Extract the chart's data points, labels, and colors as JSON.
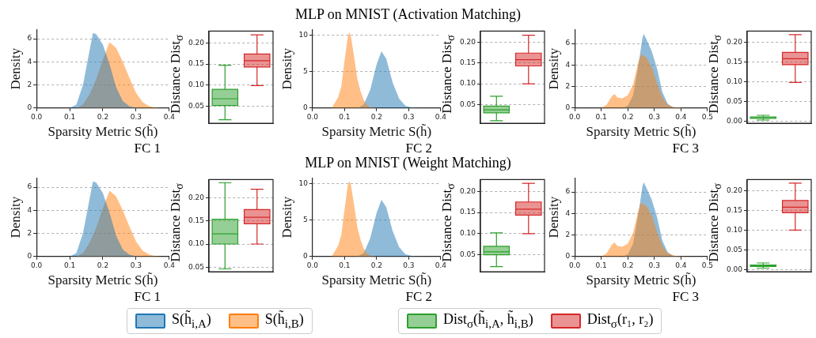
{
  "chart_data": [
    {
      "type": "other",
      "title": "MLP on MNIST (Activation Matching)"
    },
    {
      "type": "area",
      "xlabel": "Sparsity Metric S(h̃)",
      "ylabel": "Density",
      "annotations": [
        "FC 1"
      ],
      "legend": "bottom",
      "grid": "y",
      "xlim": [
        0,
        0.4
      ],
      "xticks": [
        {
          "value": 0,
          "label": "0.0"
        },
        {
          "value": 0.1,
          "label": "0.1"
        },
        {
          "value": 0.2,
          "label": "0.2"
        },
        {
          "value": 0.3,
          "label": "0.3"
        },
        {
          "value": 0.4,
          "label": "0.4"
        }
      ],
      "ylim": [
        0,
        6.8
      ],
      "yticks": [
        0,
        2,
        4,
        6
      ],
      "series": [
        {
          "name": "S(h̃$_{i,A}$)",
          "color": "#1f77b4",
          "x": [
            0.1,
            0.12,
            0.14,
            0.16,
            0.17,
            0.18,
            0.2,
            0.22,
            0.24,
            0.26,
            0.28,
            0.3,
            0.32
          ],
          "values": [
            0,
            0.3,
            2,
            5,
            6.5,
            6.4,
            5.5,
            3.8,
            1.8,
            0.6,
            0.15,
            0.02,
            0
          ]
        },
        {
          "name": "S(h̃$_{i,B}$)",
          "color": "#ff7f0e",
          "x": [
            0.12,
            0.14,
            0.16,
            0.18,
            0.2,
            0.22,
            0.24,
            0.26,
            0.28,
            0.3,
            0.32,
            0.34,
            0.36,
            0.38
          ],
          "values": [
            0,
            0.3,
            1.2,
            2.5,
            4.2,
            5.7,
            5.2,
            4,
            2.6,
            1.3,
            0.5,
            0.15,
            0.03,
            0
          ]
        }
      ]
    },
    {
      "type": "box",
      "ylabel": "Distance Dist$_{σ}$",
      "legend": "bottom",
      "grid": "y",
      "categories": [
        null,
        null
      ],
      "ylim": [
        0.01,
        0.228
      ],
      "yticks": [
        {
          "value": 0.05,
          "label": "0.05"
        },
        {
          "value": 0.1,
          "label": "0.10"
        },
        {
          "value": 0.15,
          "label": "0.15"
        },
        {
          "value": 0.2,
          "label": "0.20"
        }
      ],
      "series": [
        {
          "name": "Dist$_{σ}$(h̃$_{i,A}$, h̃$_{i,B}$)",
          "color": "#2ca02c",
          "boxes": [
            {
              "low": 0.018,
              "q1": 0.052,
              "median": 0.068,
              "q3": 0.09,
              "high": 0.147
            },
            null
          ]
        },
        {
          "name": "Dist$_{σ}$(r₁, r₂)",
          "color": "#d62728",
          "boxes": [
            null,
            {
              "low": 0.099,
              "q1": 0.143,
              "median": 0.158,
              "q3": 0.174,
              "high": 0.219
            }
          ]
        }
      ]
    },
    {
      "type": "area",
      "xlabel": "Sparsity Metric S(h̃)",
      "ylabel": "Density",
      "annotations": [
        "FC 2"
      ],
      "grid": "y",
      "xlim": [
        0,
        0.4
      ],
      "xticks": [
        {
          "value": 0,
          "label": "0.0"
        },
        {
          "value": 0.1,
          "label": "0.1"
        },
        {
          "value": 0.2,
          "label": "0.2"
        },
        {
          "value": 0.3,
          "label": "0.3"
        },
        {
          "value": 0.4,
          "label": "0.4"
        }
      ],
      "ylim": [
        0,
        10.8
      ],
      "yticks": [
        0,
        5,
        10
      ],
      "series": [
        {
          "color": "#ff7f0e",
          "x": [
            0.06,
            0.08,
            0.09,
            0.1,
            0.11,
            0.115,
            0.12,
            0.13,
            0.14,
            0.15,
            0.16,
            0.17,
            0.18,
            0.2
          ],
          "values": [
            0,
            1.5,
            3,
            6.5,
            9.8,
            10.4,
            9.8,
            7,
            4,
            2.3,
            1.1,
            0.4,
            0.1,
            0
          ]
        },
        {
          "color": "#1f77b4",
          "x": [
            0.14,
            0.16,
            0.18,
            0.2,
            0.215,
            0.23,
            0.25,
            0.27,
            0.29,
            0.31,
            0.33
          ],
          "values": [
            0,
            0.5,
            2.5,
            6,
            7.8,
            6.8,
            3.5,
            1.3,
            0.3,
            0.1,
            0
          ]
        }
      ]
    },
    {
      "type": "box",
      "ylabel": "Distance Dist$_{σ}$",
      "grid": "y",
      "categories": [
        null,
        null
      ],
      "ylim": [
        0.005,
        0.227
      ],
      "yticks": [
        {
          "value": 0.05,
          "label": "0.05"
        },
        {
          "value": 0.1,
          "label": "0.10"
        },
        {
          "value": 0.15,
          "label": "0.15"
        },
        {
          "value": 0.2,
          "label": "0.20"
        }
      ],
      "series": [
        {
          "color": "#2ca02c",
          "boxes": [
            {
              "low": 0.011,
              "q1": 0.03,
              "median": 0.037,
              "q3": 0.046,
              "high": 0.07
            },
            null
          ]
        },
        {
          "color": "#d62728",
          "boxes": [
            null,
            {
              "low": 0.1,
              "q1": 0.143,
              "median": 0.158,
              "q3": 0.174,
              "high": 0.217
            }
          ]
        }
      ]
    },
    {
      "type": "area",
      "xlabel": "Sparsity Metric S(h̃)",
      "ylabel": "Density",
      "annotations": [
        "FC 3"
      ],
      "grid": "y",
      "xlim": [
        0,
        0.5
      ],
      "xticks": [
        {
          "value": 0,
          "label": "0.0"
        },
        {
          "value": 0.1,
          "label": "0.1"
        },
        {
          "value": 0.2,
          "label": "0.2"
        },
        {
          "value": 0.3,
          "label": "0.3"
        },
        {
          "value": 0.4,
          "label": "0.4"
        },
        {
          "value": 0.5,
          "label": "0.5"
        }
      ],
      "ylim": [
        0,
        7.3
      ],
      "yticks": [
        0,
        2,
        4,
        6
      ],
      "series": [
        {
          "color": "#ff7f0e",
          "x": [
            0.1,
            0.12,
            0.14,
            0.15,
            0.16,
            0.18,
            0.2,
            0.22,
            0.24,
            0.25,
            0.27,
            0.29,
            0.31,
            0.33,
            0.35,
            0.38,
            0.42
          ],
          "values": [
            0,
            0.3,
            1.1,
            1.3,
            1,
            0.9,
            1.2,
            2.2,
            4.3,
            5,
            4.7,
            3.8,
            2.3,
            1,
            0.3,
            0.05,
            0
          ]
        },
        {
          "color": "#1f77b4",
          "x": [
            0.18,
            0.2,
            0.22,
            0.24,
            0.255,
            0.26,
            0.27,
            0.29,
            0.31,
            0.33,
            0.35,
            0.37,
            0.4
          ],
          "values": [
            0,
            0.2,
            1.2,
            4,
            6.5,
            6.9,
            6.4,
            5.3,
            3.7,
            1.5,
            0.4,
            0.05,
            0
          ]
        }
      ]
    },
    {
      "type": "box",
      "ylabel": "Distance Dist$_{σ}$",
      "grid": "y",
      "categories": [
        null,
        null
      ],
      "ylim": [
        -0.005,
        0.228
      ],
      "yticks": [
        {
          "value": 0,
          "label": "0.00"
        },
        {
          "value": 0.05,
          "label": "0.05"
        },
        {
          "value": 0.1,
          "label": "0.10"
        },
        {
          "value": 0.15,
          "label": "0.15"
        },
        {
          "value": 0.2,
          "label": "0.20"
        }
      ],
      "series": [
        {
          "color": "#2ca02c",
          "boxes": [
            {
              "low": 0.003,
              "q1": 0.007,
              "median": 0.009,
              "q3": 0.011,
              "high": 0.015
            },
            null
          ]
        },
        {
          "color": "#d62728",
          "boxes": [
            null,
            {
              "low": 0.098,
              "q1": 0.143,
              "median": 0.158,
              "q3": 0.174,
              "high": 0.219
            }
          ]
        }
      ]
    },
    {
      "type": "other",
      "title": "MLP on MNIST (Weight Matching)"
    },
    {
      "type": "area",
      "xlabel": "Sparsity Metric S(h̃)",
      "ylabel": "Density",
      "annotations": [
        "FC 1"
      ],
      "grid": "y",
      "xlim": [
        0,
        0.4
      ],
      "xticks": [
        {
          "value": 0,
          "label": "0.0"
        },
        {
          "value": 0.1,
          "label": "0.1"
        },
        {
          "value": 0.2,
          "label": "0.2"
        },
        {
          "value": 0.3,
          "label": "0.3"
        },
        {
          "value": 0.4,
          "label": "0.4"
        }
      ],
      "ylim": [
        0,
        6.8
      ],
      "yticks": [
        0,
        2,
        4,
        6
      ],
      "series": [
        {
          "color": "#1f77b4",
          "x": [
            0.1,
            0.12,
            0.14,
            0.16,
            0.17,
            0.18,
            0.2,
            0.22,
            0.24,
            0.26,
            0.28,
            0.3,
            0.32
          ],
          "values": [
            0,
            0.3,
            2,
            5,
            6.5,
            6.4,
            5.5,
            3.8,
            1.8,
            0.6,
            0.15,
            0.02,
            0
          ]
        },
        {
          "color": "#ff7f0e",
          "x": [
            0.12,
            0.14,
            0.16,
            0.18,
            0.2,
            0.22,
            0.24,
            0.26,
            0.28,
            0.3,
            0.32,
            0.34,
            0.36,
            0.38
          ],
          "values": [
            0,
            0.3,
            1.2,
            2.5,
            4.2,
            5.7,
            5.2,
            4,
            2.6,
            1.3,
            0.5,
            0.15,
            0.03,
            0
          ]
        }
      ]
    },
    {
      "type": "box",
      "ylabel": "Distance Dist$_{σ}$",
      "grid": "y",
      "categories": [
        null,
        null
      ],
      "ylim": [
        0.04,
        0.24
      ],
      "yticks": [
        {
          "value": 0.05,
          "label": "0.05"
        },
        {
          "value": 0.1,
          "label": "0.10"
        },
        {
          "value": 0.15,
          "label": "0.15"
        },
        {
          "value": 0.2,
          "label": "0.20"
        }
      ],
      "series": [
        {
          "color": "#2ca02c",
          "boxes": [
            {
              "low": 0.046,
              "q1": 0.1,
              "median": 0.122,
              "q3": 0.154,
              "high": 0.233
            },
            null
          ]
        },
        {
          "color": "#d62728",
          "boxes": [
            null,
            {
              "low": 0.1,
              "q1": 0.144,
              "median": 0.158,
              "q3": 0.175,
              "high": 0.219
            }
          ]
        }
      ]
    },
    {
      "type": "area",
      "xlabel": "Sparsity Metric S(h̃)",
      "ylabel": "Density",
      "annotations": [
        "FC 2"
      ],
      "grid": "y",
      "xlim": [
        0,
        0.4
      ],
      "xticks": [
        {
          "value": 0,
          "label": "0.0"
        },
        {
          "value": 0.1,
          "label": "0.1"
        },
        {
          "value": 0.2,
          "label": "0.2"
        },
        {
          "value": 0.3,
          "label": "0.3"
        },
        {
          "value": 0.4,
          "label": "0.4"
        }
      ],
      "ylim": [
        0,
        10.8
      ],
      "yticks": [
        0,
        5,
        10
      ],
      "series": [
        {
          "color": "#ff7f0e",
          "x": [
            0.06,
            0.08,
            0.09,
            0.1,
            0.11,
            0.115,
            0.12,
            0.13,
            0.14,
            0.15,
            0.16,
            0.17,
            0.18,
            0.2
          ],
          "values": [
            0,
            1.5,
            3,
            6.5,
            9.8,
            10.4,
            9.8,
            7,
            4,
            2.3,
            1.1,
            0.4,
            0.1,
            0
          ]
        },
        {
          "color": "#1f77b4",
          "x": [
            0.14,
            0.16,
            0.18,
            0.2,
            0.215,
            0.23,
            0.25,
            0.27,
            0.29,
            0.31,
            0.33
          ],
          "values": [
            0,
            0.5,
            2.5,
            6,
            7.8,
            6.8,
            3.5,
            1.3,
            0.3,
            0.1,
            0
          ]
        }
      ]
    },
    {
      "type": "box",
      "ylabel": "Distance Dist$_{σ}$",
      "grid": "y",
      "categories": [
        null,
        null
      ],
      "ylim": [
        0.01,
        0.228
      ],
      "yticks": [
        {
          "value": 0.05,
          "label": "0.05"
        },
        {
          "value": 0.1,
          "label": "0.10"
        },
        {
          "value": 0.15,
          "label": "0.15"
        },
        {
          "value": 0.2,
          "label": "0.20"
        }
      ],
      "series": [
        {
          "color": "#2ca02c",
          "boxes": [
            {
              "low": 0.022,
              "q1": 0.05,
              "median": 0.057,
              "q3": 0.07,
              "high": 0.102
            },
            null
          ]
        },
        {
          "color": "#d62728",
          "boxes": [
            null,
            {
              "low": 0.1,
              "q1": 0.144,
              "median": 0.158,
              "q3": 0.175,
              "high": 0.219
            }
          ]
        }
      ]
    },
    {
      "type": "area",
      "xlabel": "Sparsity Metric S(h̃)",
      "ylabel": "Density",
      "annotations": [
        "FC 3"
      ],
      "grid": "y",
      "xlim": [
        0,
        0.5
      ],
      "xticks": [
        {
          "value": 0,
          "label": "0.0"
        },
        {
          "value": 0.1,
          "label": "0.1"
        },
        {
          "value": 0.2,
          "label": "0.2"
        },
        {
          "value": 0.3,
          "label": "0.3"
        },
        {
          "value": 0.4,
          "label": "0.4"
        },
        {
          "value": 0.5,
          "label": "0.5"
        }
      ],
      "ylim": [
        0,
        7.3
      ],
      "yticks": [
        0,
        2,
        4,
        6
      ],
      "series": [
        {
          "color": "#ff7f0e",
          "x": [
            0.1,
            0.12,
            0.14,
            0.15,
            0.16,
            0.18,
            0.2,
            0.22,
            0.24,
            0.25,
            0.27,
            0.29,
            0.31,
            0.33,
            0.35,
            0.38,
            0.42
          ],
          "values": [
            0,
            0.3,
            1.1,
            1.3,
            1,
            0.9,
            1.2,
            2.2,
            4.3,
            5,
            4.7,
            3.8,
            2.3,
            1,
            0.3,
            0.05,
            0
          ]
        },
        {
          "color": "#1f77b4",
          "x": [
            0.18,
            0.2,
            0.22,
            0.24,
            0.255,
            0.26,
            0.27,
            0.29,
            0.31,
            0.33,
            0.35,
            0.37,
            0.4
          ],
          "values": [
            0,
            0.2,
            1.2,
            4,
            6.5,
            6.9,
            6.4,
            5.3,
            3.7,
            1.5,
            0.4,
            0.05,
            0
          ]
        }
      ]
    },
    {
      "type": "box",
      "ylabel": "Distance Dist$_{σ}$",
      "grid": "y",
      "categories": [
        null,
        null
      ],
      "ylim": [
        -0.005,
        0.228
      ],
      "yticks": [
        {
          "value": 0,
          "label": "0.00"
        },
        {
          "value": 0.05,
          "label": "0.05"
        },
        {
          "value": 0.1,
          "label": "0.10"
        },
        {
          "value": 0.15,
          "label": "0.15"
        },
        {
          "value": 0.2,
          "label": "0.20"
        }
      ],
      "series": [
        {
          "color": "#2ca02c",
          "boxes": [
            {
              "low": 0.004,
              "q1": 0.008,
              "median": 0.01,
              "q3": 0.012,
              "high": 0.017
            },
            null
          ]
        },
        {
          "color": "#d62728",
          "boxes": [
            null,
            {
              "low": 0.1,
              "q1": 0.144,
              "median": 0.158,
              "q3": 0.175,
              "high": 0.219
            }
          ]
        }
      ]
    }
  ]
}
